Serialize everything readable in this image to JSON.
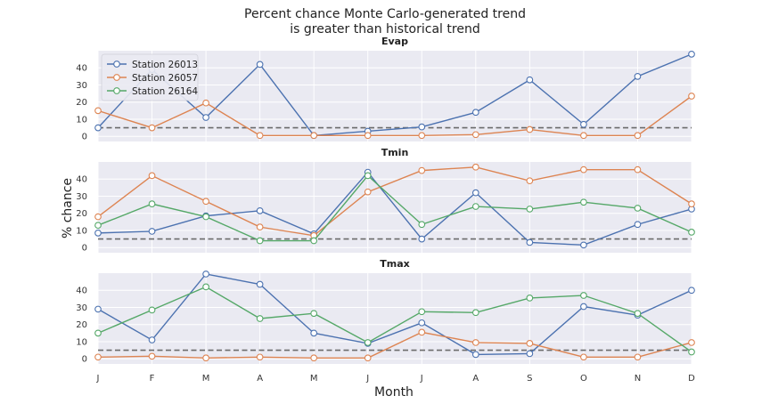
{
  "figure": {
    "title_line1": "Percent chance Monte Carlo-generated trend",
    "title_line2": "is greater than historical trend",
    "xlabel": "Month",
    "ylabel": "% chance"
  },
  "colors": {
    "background": "#eaeaf2",
    "grid": "#ffffff",
    "threshold": "#6b6b6b"
  },
  "legend": {
    "placement": "upper-left",
    "panel": 0,
    "entries": [
      {
        "name": "Station 26013",
        "color": "#4c72b0"
      },
      {
        "name": "Station 26057",
        "color": "#dd8452"
      },
      {
        "name": "Station 26164",
        "color": "#55a868"
      }
    ]
  },
  "chart_data": {
    "type": "line",
    "categories": [
      "J",
      "F",
      "M",
      "A",
      "M",
      "J",
      "J",
      "A",
      "S",
      "O",
      "N",
      "D"
    ],
    "yticks": [
      0,
      10,
      20,
      30,
      40
    ],
    "ylim": [
      -3,
      50
    ],
    "threshold": 5,
    "grid": true,
    "panels": [
      {
        "title": "Evap",
        "series": [
          {
            "name": "Station 26013",
            "color": "#4c72b0",
            "values": [
              5,
              39,
              11,
              42,
              0.5,
              3,
              5.5,
              14,
              33,
              7,
              35,
              48
            ]
          },
          {
            "name": "Station 26057",
            "color": "#dd8452",
            "values": [
              15,
              5,
              19.5,
              0.5,
              0.5,
              0.5,
              0.5,
              1,
              4,
              0.5,
              0.5,
              23.5
            ]
          },
          {
            "name": "Station 26164",
            "color": "#55a868",
            "values": []
          }
        ]
      },
      {
        "title": "Tmin",
        "series": [
          {
            "name": "Station 26013",
            "color": "#4c72b0",
            "values": [
              8.5,
              9.5,
              18.5,
              21.5,
              8,
              44,
              5,
              32,
              3,
              1.5,
              13.5,
              22.5
            ]
          },
          {
            "name": "Station 26057",
            "color": "#dd8452",
            "values": [
              18,
              42,
              27,
              12,
              7,
              32.5,
              45,
              47,
              39,
              45.5,
              45.5,
              25.5
            ]
          },
          {
            "name": "Station 26164",
            "color": "#55a868",
            "values": [
              13,
              25.5,
              18,
              4,
              4,
              42,
              13.5,
              24,
              22.5,
              26.5,
              23,
              9
            ]
          }
        ]
      },
      {
        "title": "Tmax",
        "series": [
          {
            "name": "Station 26013",
            "color": "#4c72b0",
            "values": [
              29,
              11,
              49.5,
              43.5,
              15,
              9,
              21,
              2.5,
              3,
              30.5,
              25.5,
              40
            ]
          },
          {
            "name": "Station 26057",
            "color": "#dd8452",
            "values": [
              1,
              1.5,
              0.5,
              1,
              0.5,
              0.5,
              15.5,
              9.5,
              9,
              1,
              1,
              9.5
            ]
          },
          {
            "name": "Station 26164",
            "color": "#55a868",
            "values": [
              15,
              28.5,
              42,
              23.5,
              26.5,
              9.5,
              27.5,
              27,
              35.5,
              37,
              26.5,
              4
            ]
          }
        ]
      }
    ]
  }
}
